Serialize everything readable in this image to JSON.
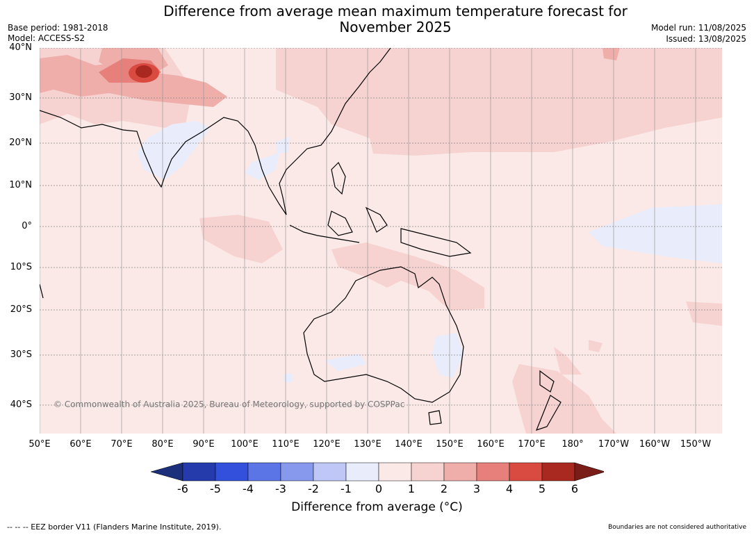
{
  "header": {
    "title": "Difference from average mean maximum temperature forecast for\nNovember 2025",
    "base_period": "Base period: 1981-2018",
    "model": "Model: ACCESS-S2",
    "model_run": "Model run: 11/08/2025",
    "issued": "Issued: 13/08/2025"
  },
  "map": {
    "copyright": "© Commonwealth of Australia 2025, Bureau of Meteorology, supported by COSPPac",
    "lat_labels": [
      "40°N",
      "30°N",
      "20°N",
      "10°N",
      "0°",
      "10°S",
      "20°S",
      "30°S",
      "40°S"
    ],
    "lon_labels": [
      "50°E",
      "60°E",
      "70°E",
      "80°E",
      "90°E",
      "100°E",
      "110°E",
      "120°E",
      "130°E",
      "140°E",
      "150°E",
      "160°E",
      "170°E",
      "180°",
      "170°W",
      "160°W",
      "150°W"
    ]
  },
  "colorbar": {
    "label": "Difference from average (°C)",
    "ticks": [
      "-6",
      "-5",
      "-4",
      "-3",
      "-2",
      "-1",
      "0",
      "1",
      "2",
      "3",
      "4",
      "5",
      "6"
    ],
    "colors": [
      "#1c2f7a",
      "#263bab",
      "#3350dd",
      "#5b74e6",
      "#8799ec",
      "#bec7f5",
      "#e8ecfb",
      "#fbe9e7",
      "#f6d3d0",
      "#efaeaa",
      "#e7807a",
      "#d94a40",
      "#a9281f",
      "#7a1c17"
    ],
    "under_color": "#1c2f7a",
    "over_color": "#7a1c17"
  },
  "footer": {
    "eez_note": "--  --  -- EEZ border V11 (Flanders Marine Institute, 2019).",
    "boundary_note": "Boundaries are not considered authoritative"
  }
}
